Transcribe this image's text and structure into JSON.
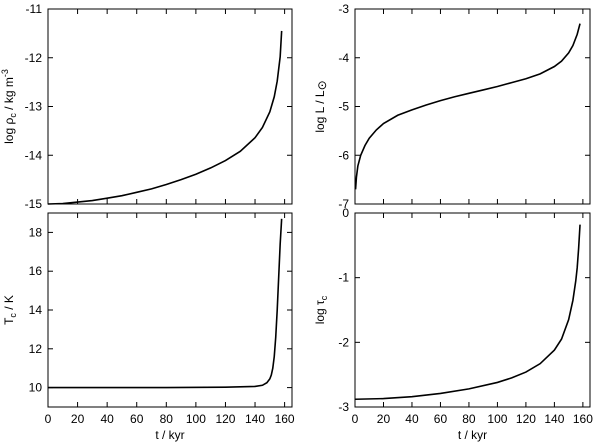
{
  "chart_data": [
    {
      "id": "rho",
      "type": "line",
      "xlabel": "",
      "ylabel_parts": [
        "log ρ",
        "c",
        " / kg m",
        "-3"
      ],
      "xlim": [
        0,
        165
      ],
      "ylim": [
        -15,
        -11
      ],
      "xticks": [
        0,
        20,
        40,
        60,
        80,
        100,
        120,
        140,
        160
      ],
      "yticks": [
        -15,
        -14,
        -13,
        -12,
        -11
      ],
      "show_xtick_labels": false,
      "series": [
        {
          "x": [
            0,
            10,
            20,
            30,
            40,
            50,
            60,
            70,
            80,
            90,
            100,
            110,
            120,
            130,
            140,
            145,
            150,
            153,
            155,
            157,
            158
          ],
          "y": [
            -15.0,
            -14.99,
            -14.96,
            -14.93,
            -14.88,
            -14.83,
            -14.76,
            -14.69,
            -14.6,
            -14.5,
            -14.39,
            -14.26,
            -14.11,
            -13.92,
            -13.64,
            -13.43,
            -13.11,
            -12.8,
            -12.48,
            -11.98,
            -11.45
          ]
        }
      ]
    },
    {
      "id": "lum",
      "type": "line",
      "xlabel": "",
      "ylabel_parts": [
        "log L / L",
        "⊙"
      ],
      "xlim": [
        0,
        165
      ],
      "ylim": [
        -7,
        -3
      ],
      "xticks": [
        0,
        20,
        40,
        60,
        80,
        100,
        120,
        140,
        160
      ],
      "yticks": [
        -7,
        -6,
        -5,
        -4,
        -3
      ],
      "show_xtick_labels": false,
      "series": [
        {
          "x": [
            0.4,
            1,
            2,
            4,
            7,
            10,
            15,
            20,
            30,
            40,
            50,
            60,
            70,
            80,
            90,
            100,
            110,
            120,
            130,
            140,
            145,
            150,
            153,
            156,
            158
          ],
          "y": [
            -6.7,
            -6.45,
            -6.22,
            -6.0,
            -5.8,
            -5.65,
            -5.48,
            -5.35,
            -5.18,
            -5.07,
            -4.97,
            -4.88,
            -4.8,
            -4.73,
            -4.66,
            -4.59,
            -4.51,
            -4.43,
            -4.33,
            -4.18,
            -4.07,
            -3.9,
            -3.75,
            -3.52,
            -3.3
          ]
        }
      ]
    },
    {
      "id": "tc",
      "type": "line",
      "xlabel": "t / kyr",
      "ylabel_parts": [
        "T",
        "c",
        " / K"
      ],
      "xlim": [
        0,
        165
      ],
      "ylim": [
        9,
        19
      ],
      "xticks": [
        0,
        20,
        40,
        60,
        80,
        100,
        120,
        140,
        160
      ],
      "yticks": [
        10,
        12,
        14,
        16,
        18
      ],
      "show_xtick_labels": true,
      "series": [
        {
          "x": [
            0,
            40,
            80,
            120,
            140,
            145,
            148,
            150,
            151,
            152,
            153,
            154,
            155,
            156,
            157,
            158
          ],
          "y": [
            10.0,
            10.0,
            10.0,
            10.02,
            10.06,
            10.12,
            10.25,
            10.45,
            10.65,
            11.0,
            11.6,
            12.6,
            14.0,
            15.7,
            17.4,
            18.7
          ]
        }
      ]
    },
    {
      "id": "tau",
      "type": "line",
      "xlabel": "t / kyr",
      "ylabel_parts": [
        "log τ",
        "c"
      ],
      "xlim": [
        0,
        165
      ],
      "ylim": [
        -3,
        0
      ],
      "xticks": [
        0,
        20,
        40,
        60,
        80,
        100,
        120,
        140,
        160
      ],
      "yticks": [
        -3,
        -2,
        -1,
        0
      ],
      "show_xtick_labels": true,
      "series": [
        {
          "x": [
            0,
            20,
            40,
            60,
            80,
            100,
            110,
            120,
            130,
            140,
            145,
            150,
            153,
            155,
            156,
            157,
            158
          ],
          "y": [
            -2.88,
            -2.87,
            -2.84,
            -2.79,
            -2.72,
            -2.62,
            -2.55,
            -2.46,
            -2.33,
            -2.12,
            -1.95,
            -1.65,
            -1.35,
            -1.05,
            -0.85,
            -0.55,
            -0.18
          ]
        }
      ]
    }
  ]
}
